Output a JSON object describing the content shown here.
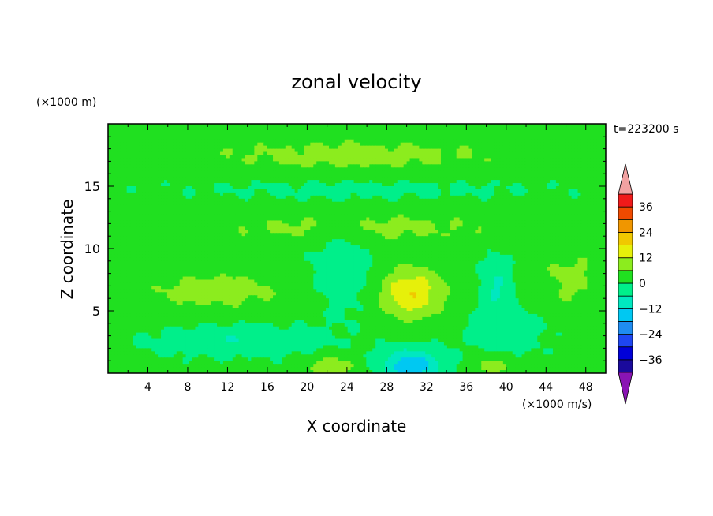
{
  "chart_data": {
    "type": "heatmap",
    "title": "zonal velocity",
    "xlabel": "X coordinate",
    "ylabel": "Z coordinate",
    "y_unit": "(×1000 m)",
    "x_unit": "(×1000 m/s)",
    "time_label": "t=223200 s",
    "xlim": [
      0,
      50
    ],
    "ylim": [
      0,
      20
    ],
    "x_ticks": [
      "4",
      "8",
      "12",
      "16",
      "20",
      "24",
      "28",
      "32",
      "36",
      "40",
      "44",
      "48"
    ],
    "x_tick_values": [
      4,
      8,
      12,
      16,
      20,
      24,
      28,
      32,
      36,
      40,
      44,
      48
    ],
    "y_ticks": [
      "5",
      "10",
      "15"
    ],
    "y_tick_values": [
      5,
      10,
      15
    ],
    "colorbar": {
      "levels": [
        -42,
        -36,
        -30,
        -24,
        -18,
        -12,
        -6,
        0,
        6,
        12,
        18,
        24,
        30,
        36,
        42
      ],
      "tick_labels": [
        "36",
        "24",
        "12",
        "0",
        "−12",
        "−24",
        "−36"
      ],
      "tick_values": [
        36,
        24,
        12,
        0,
        -12,
        -24,
        -36
      ],
      "colors": [
        "#4b0a8c",
        "#1a0a9c",
        "#0000d8",
        "#1e46f2",
        "#1f8cf0",
        "#00c8f2",
        "#00e8c0",
        "#00ef8a",
        "#20e020",
        "#8cec1e",
        "#e6f00a",
        "#f0c800",
        "#f09600",
        "#f04a00",
        "#f01a1a",
        "#e60000"
      ],
      "under_color": "#8a14b4",
      "over_color": "#f2a2a2"
    },
    "field_centers": [
      {
        "x": 30.5,
        "z": 6.4,
        "sx": 3.2,
        "sz": 2.0,
        "amp": 16
      },
      {
        "x": 30.5,
        "z": 0.6,
        "sx": 3.0,
        "sz": 1.3,
        "amp": -18
      },
      {
        "x": 22.5,
        "z": 0.5,
        "sx": 2.4,
        "sz": 0.9,
        "amp": 9
      },
      {
        "x": 38.5,
        "z": 0.6,
        "sx": 2.0,
        "sz": 0.8,
        "amp": 8
      },
      {
        "x": 46.5,
        "z": 7.5,
        "sx": 3.5,
        "sz": 2.6,
        "amp": 6
      },
      {
        "x": 11,
        "z": 6.6,
        "sx": 8,
        "sz": 1.6,
        "amp": 7
      },
      {
        "x": 13,
        "z": 2.6,
        "sx": 8,
        "sz": 1.2,
        "amp": -7
      },
      {
        "x": 39,
        "z": 7.0,
        "sx": 1.5,
        "sz": 2.2,
        "amp": -8
      },
      {
        "x": 23.5,
        "z": 8.5,
        "sx": 3.0,
        "sz": 3.5,
        "amp": -7
      },
      {
        "x": 25,
        "z": 17.5,
        "sx": 20,
        "sz": 1.6,
        "amp": 6
      },
      {
        "x": 25,
        "z": 11.7,
        "sx": 18,
        "sz": 1.4,
        "amp": 6
      },
      {
        "x": 26,
        "z": 14.8,
        "sx": 20,
        "sz": 1.0,
        "amp": -3
      },
      {
        "x": 40,
        "z": 3.5,
        "sx": 4,
        "sz": 2.0,
        "amp": -5
      }
    ]
  }
}
